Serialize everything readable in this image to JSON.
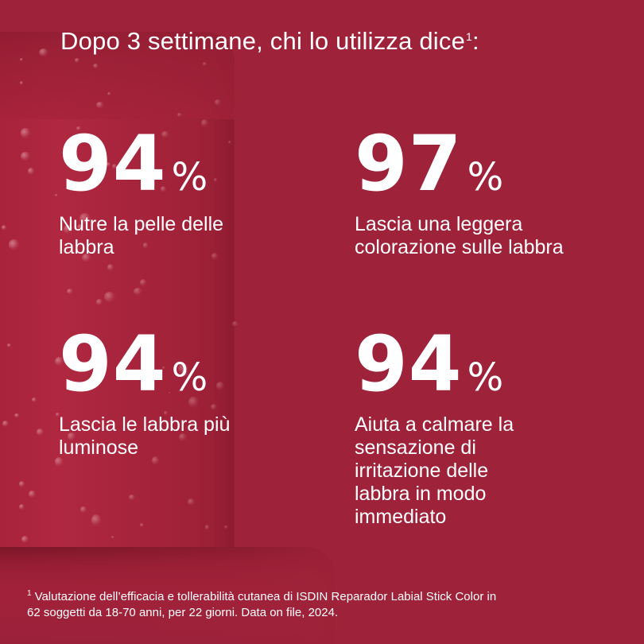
{
  "headline": {
    "text": "Dopo 3 settimane, chi lo utilizza dice",
    "sup": "1",
    "suffix": ":"
  },
  "stats": [
    {
      "value": "94",
      "unit": "%",
      "lines": [
        "Nutre la pelle delle",
        "labbra"
      ]
    },
    {
      "value": "97",
      "unit": "%",
      "lines": [
        "Lascia una leggera",
        "colorazione sulle labbra"
      ]
    },
    {
      "value": "94",
      "unit": "%",
      "lines": [
        "Lascia le labbra più",
        "luminose"
      ]
    },
    {
      "value": "94",
      "unit": "%",
      "lines": [
        "Aiuta a calmare la",
        "sensazione di",
        "irritazione delle",
        "labbra in modo",
        "immediato"
      ]
    }
  ],
  "footnote": {
    "sup": "1",
    "line1": "Valutazione dell’efficacia e tollerabilità cutanea di ISDIN Reparador Labial Stick Color in",
    "line2": "62 soggetti da 18-70 anni, per 22 giorni. Data on file, 2024."
  },
  "colors": {
    "background": "#9e2239",
    "text": "#ffffff"
  }
}
